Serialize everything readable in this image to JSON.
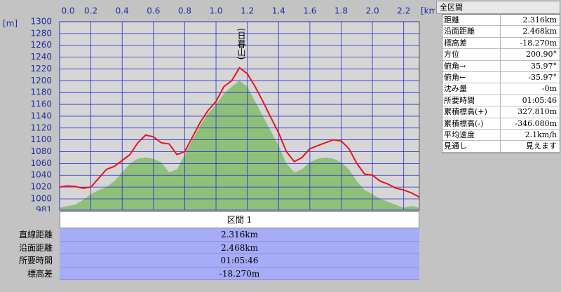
{
  "chart_data": {
    "type": "line",
    "xlabel": "[km]",
    "ylabel": "[m]",
    "annotation": "(日暮山)",
    "x": [
      0,
      0.05,
      0.1,
      0.15,
      0.2,
      0.25,
      0.3,
      0.35,
      0.4,
      0.45,
      0.5,
      0.55,
      0.6,
      0.65,
      0.7,
      0.75,
      0.8,
      0.85,
      0.9,
      0.95,
      1.0,
      1.05,
      1.1,
      1.15,
      1.2,
      1.25,
      1.3,
      1.35,
      1.4,
      1.45,
      1.5,
      1.55,
      1.6,
      1.65,
      1.7,
      1.75,
      1.8,
      1.85,
      1.9,
      1.95,
      2.0,
      2.05,
      2.1,
      2.15,
      2.2,
      2.25,
      2.3
    ],
    "series": [
      {
        "style": "area",
        "color": "#8fc07a",
        "values": [
          985,
          988,
          990,
          998,
          1008,
          1015,
          1020,
          1030,
          1045,
          1060,
          1068,
          1070,
          1068,
          1062,
          1045,
          1050,
          1075,
          1100,
          1125,
          1145,
          1160,
          1178,
          1190,
          1200,
          1190,
          1165,
          1140,
          1115,
          1090,
          1060,
          1045,
          1050,
          1062,
          1068,
          1070,
          1068,
          1062,
          1050,
          1030,
          1015,
          1008,
          1000,
          995,
          990,
          985,
          988,
          985
        ]
      },
      {
        "style": "line",
        "color": "#e8141c",
        "values": [
          1020,
          1022,
          1021,
          1018,
          1020,
          1035,
          1050,
          1055,
          1065,
          1075,
          1095,
          1108,
          1105,
          1095,
          1093,
          1075,
          1080,
          1105,
          1130,
          1150,
          1165,
          1190,
          1200,
          1222,
          1212,
          1190,
          1165,
          1138,
          1112,
          1080,
          1063,
          1070,
          1085,
          1090,
          1095,
          1100,
          1098,
          1085,
          1060,
          1042,
          1040,
          1030,
          1025,
          1018,
          1015,
          1010,
          1003
        ]
      }
    ],
    "xlim": [
      0,
      2.3
    ],
    "xticks": [
      {
        "value": 0,
        "label": "0.0"
      },
      0.2,
      0.4,
      0.6,
      0.8,
      {
        "value": 1,
        "label": "1.0"
      },
      1.2,
      1.4,
      1.6,
      1.8,
      {
        "value": 2,
        "label": "2.0"
      },
      2.2
    ],
    "ylim": [
      981,
      1300
    ],
    "yticks": [
      981,
      1000,
      1020,
      1040,
      1060,
      1080,
      1100,
      1120,
      1140,
      1160,
      1180,
      1200,
      1220,
      1240,
      1260,
      1280,
      1300
    ],
    "grid": true
  },
  "summary": {
    "title": "全区間",
    "rows": [
      [
        "距離",
        "2.316km"
      ],
      [
        "沿面距離",
        "2.468km"
      ],
      [
        "標高差",
        "-18.270m"
      ],
      [
        "方位",
        "200.90°"
      ],
      [
        "俯角→",
        "35.97°"
      ],
      [
        "俯角←",
        "-35.97°"
      ],
      [
        "沈み量",
        "-0m"
      ],
      [
        "所要時間",
        "01:05:46"
      ],
      [
        "累積標高(+)",
        "327.810m"
      ],
      [
        "累積標高(-)",
        "-346.080m"
      ],
      [
        "平均速度",
        "2.1km/h"
      ],
      [
        "見通し",
        "見えます"
      ]
    ]
  },
  "section": {
    "title": "区間 1",
    "rows": [
      [
        "直線距離",
        "2.316km"
      ],
      [
        "沿面距離",
        "2.468km"
      ],
      [
        "所要時間",
        "01:05:46"
      ],
      [
        "標高差",
        "-18.270m"
      ]
    ]
  }
}
